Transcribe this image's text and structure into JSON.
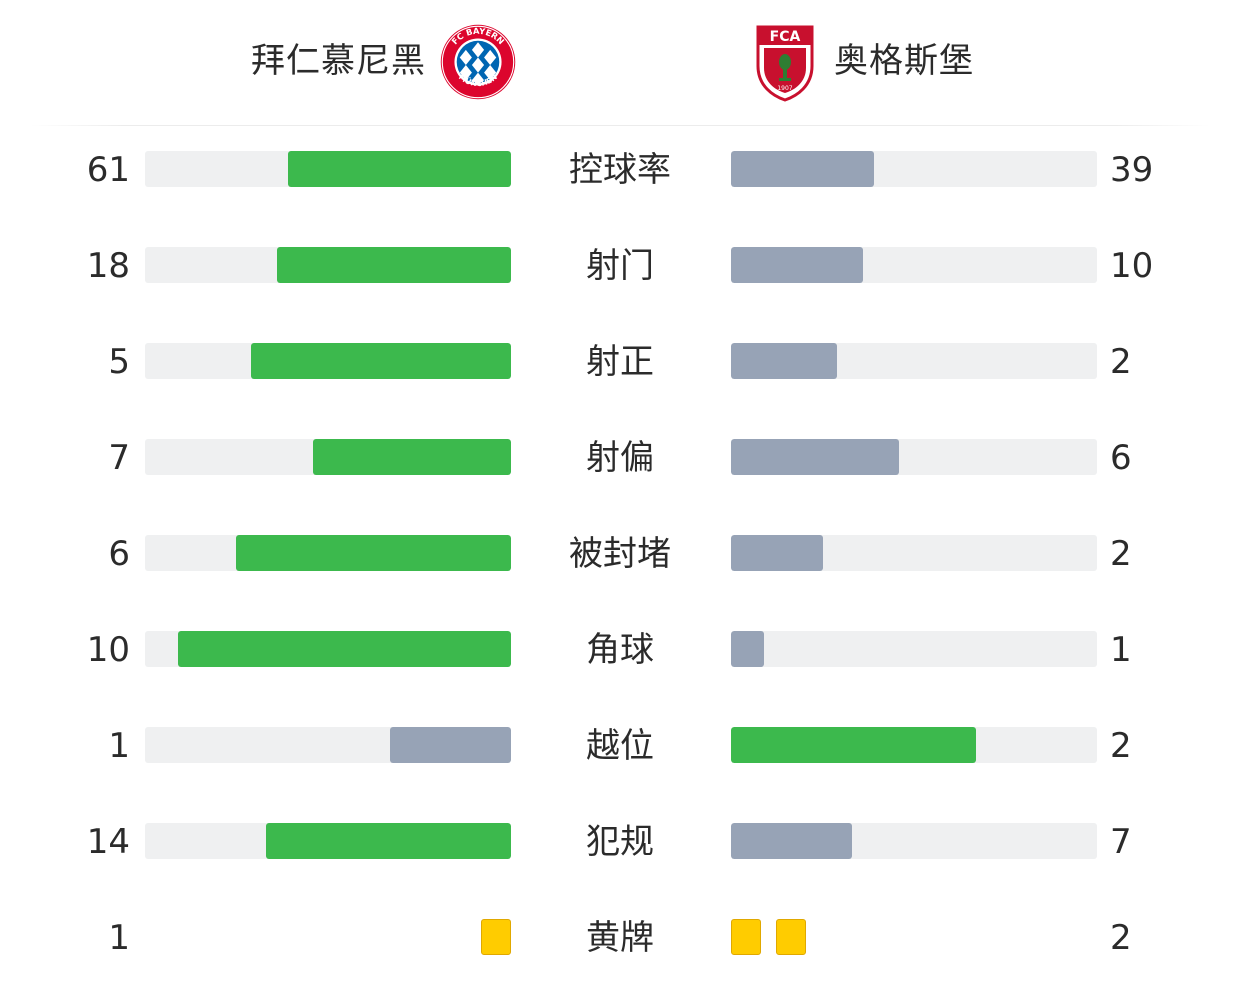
{
  "home": {
    "name": "拜仁慕尼黑",
    "logo": "fc-bayern-logo",
    "logo_text": "FC BAYERN MÜNCHEN"
  },
  "away": {
    "name": "奥格斯堡",
    "logo": "fc-augsburg-logo",
    "logo_text": "FCA 1907"
  },
  "colors": {
    "leader": "#3cb94d",
    "trailer": "#97a3b6",
    "track": "#eff0f1",
    "yellow_card": "#ffcc00"
  },
  "stats": [
    {
      "label": "控球率",
      "home": "61",
      "away": "39",
      "home_fill": 0.61,
      "away_fill": 0.39,
      "leader": "home"
    },
    {
      "label": "射门",
      "home": "18",
      "away": "10",
      "home_fill": 0.64,
      "away_fill": 0.36,
      "leader": "home"
    },
    {
      "label": "射正",
      "home": "5",
      "away": "2",
      "home_fill": 0.71,
      "away_fill": 0.29,
      "leader": "home"
    },
    {
      "label": "射偏",
      "home": "7",
      "away": "6",
      "home_fill": 0.54,
      "away_fill": 0.46,
      "leader": "home"
    },
    {
      "label": "被封堵",
      "home": "6",
      "away": "2",
      "home_fill": 0.75,
      "away_fill": 0.25,
      "leader": "home"
    },
    {
      "label": "角球",
      "home": "10",
      "away": "1",
      "home_fill": 0.91,
      "away_fill": 0.09,
      "leader": "home"
    },
    {
      "label": "越位",
      "home": "1",
      "away": "2",
      "home_fill": 0.33,
      "away_fill": 0.67,
      "leader": "away"
    },
    {
      "label": "犯规",
      "home": "14",
      "away": "7",
      "home_fill": 0.67,
      "away_fill": 0.33,
      "leader": "home"
    }
  ],
  "cards": {
    "label": "黄牌",
    "home": "1",
    "away": "2",
    "home_count": 1,
    "away_count": 2
  }
}
